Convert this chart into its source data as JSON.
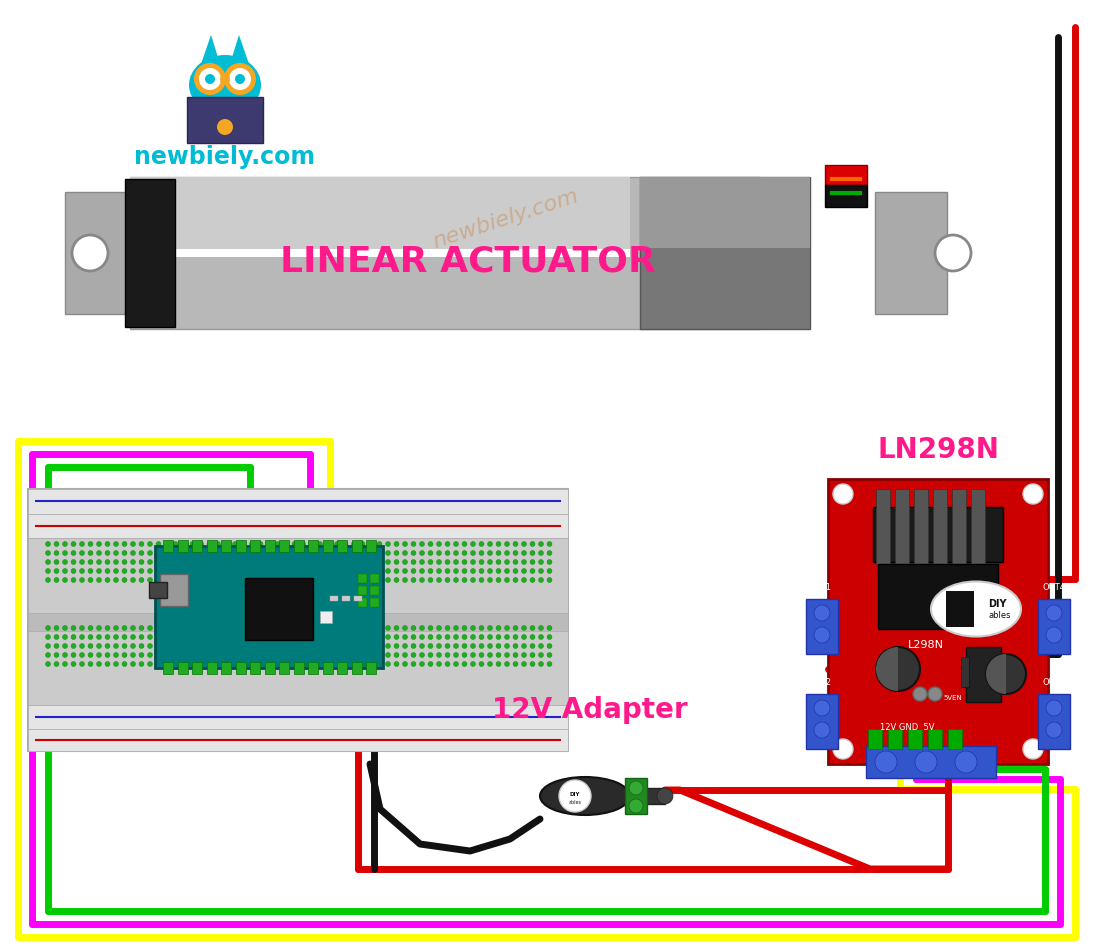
{
  "bg_color": "#ffffff",
  "watermark": "newbiely.com",
  "watermark_color": "#c8864a",
  "watermark_alpha": 0.45,
  "logo_text": "newbiely.com",
  "logo_text_color": "#00bcd4",
  "linear_actuator_label": "LINEAR ACTUATOR",
  "linear_actuator_label_color": "#ff1a8c",
  "label_12v": "12V Adapter",
  "label_12v_color": "#ff1a8c",
  "label_l298n": "LN298N",
  "label_l298n_color": "#ff1a8c",
  "wire_yellow_color": "#ffff00",
  "wire_magenta_color": "#ff00ff",
  "wire_green_color": "#00cc00",
  "wire_red_color": "#dd0000",
  "wire_black_color": "#111111",
  "wire_lw": 5
}
